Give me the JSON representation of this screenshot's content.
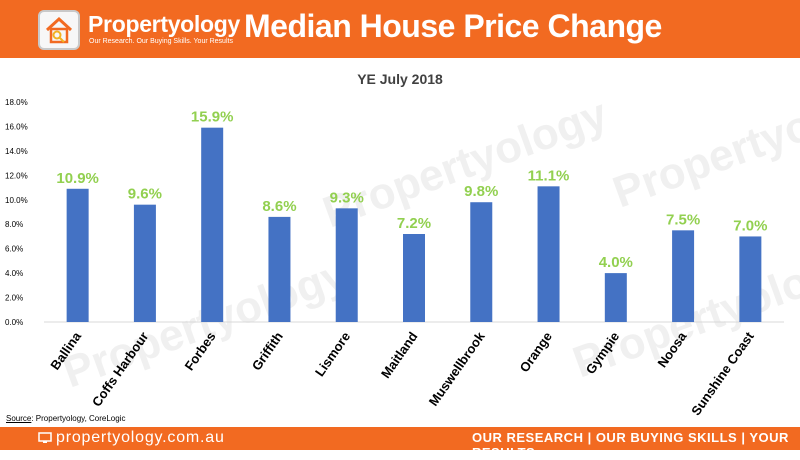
{
  "header": {
    "brand_name": "Propertyology",
    "brand_tagline": "Our Research. Our Buying Skills. Your Results",
    "title": "Median House Price Change"
  },
  "footer": {
    "url": "propertyology.com.au",
    "motto": "OUR RESEARCH | OUR BUYING SKILLS | YOUR RESULTS"
  },
  "source": {
    "label": "Source",
    "text": ": Propertyology, CoreLogic"
  },
  "watermark": "Propertyology",
  "colors": {
    "brand_orange": "#f26a21",
    "bar_blue": "#4472c4",
    "label_green": "#92d050"
  },
  "chart_data": {
    "type": "bar",
    "title": "YE July 2018",
    "categories": [
      "Ballina",
      "Coffs Harbour",
      "Forbes",
      "Griffith",
      "Lismore",
      "Maitland",
      "Muswellbrook",
      "Orange",
      "Gympie",
      "Noosa",
      "Sunshine Coast"
    ],
    "values": [
      10.9,
      9.6,
      15.9,
      8.6,
      9.3,
      7.2,
      9.8,
      11.1,
      4.0,
      7.5,
      7.0
    ],
    "value_labels": [
      "10.9%",
      "9.6%",
      "15.9%",
      "8.6%",
      "9.3%",
      "7.2%",
      "9.8%",
      "11.1%",
      "4.0%",
      "7.5%",
      "7.0%"
    ],
    "y_ticks": [
      "0.0%",
      "2.0%",
      "4.0%",
      "6.0%",
      "8.0%",
      "10.0%",
      "12.0%",
      "14.0%",
      "16.0%",
      "18.0%"
    ],
    "ylim": [
      0,
      18
    ],
    "xlabel": "",
    "ylabel": "",
    "grid": false,
    "legend": "none"
  }
}
